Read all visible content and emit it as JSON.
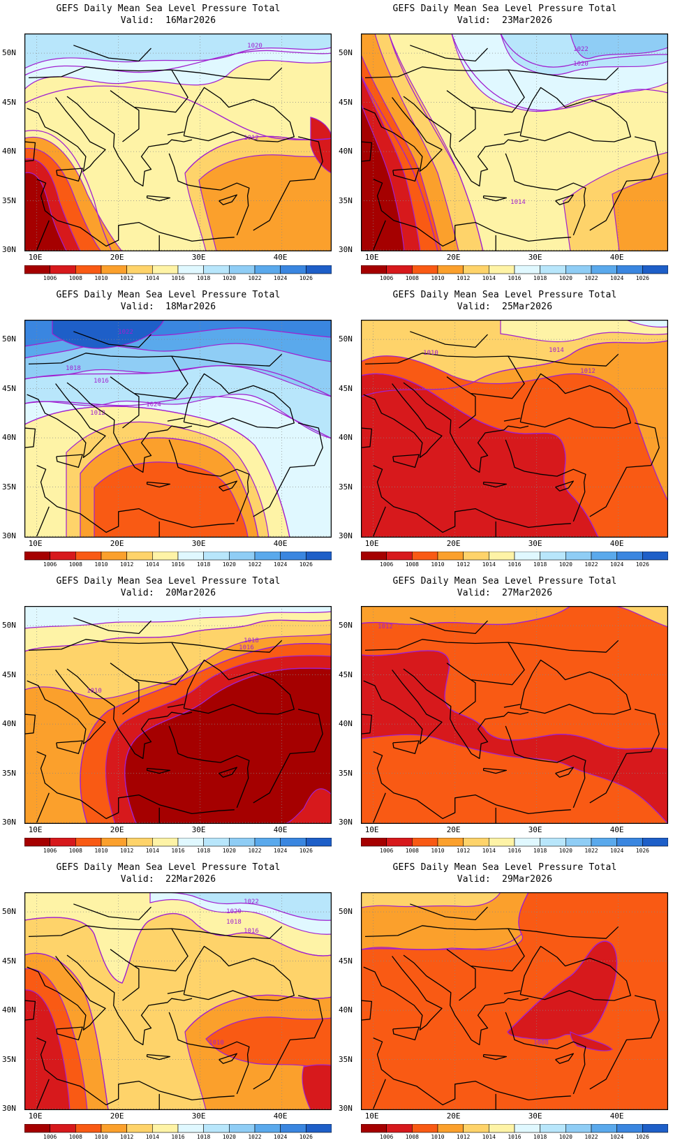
{
  "title": "GEFS Daily Mean Sea Level Pressure Total",
  "valid_prefix": "Valid:",
  "axis": {
    "lat_labels": [
      "50N",
      "45N",
      "40N",
      "35N",
      "30N"
    ],
    "lon_labels": [
      "10E",
      "20E",
      "30E",
      "40E"
    ]
  },
  "colorbar": {
    "labels": [
      "1006",
      "1008",
      "1010",
      "1012",
      "1014",
      "1016",
      "1018",
      "1020",
      "1022",
      "1024",
      "1026"
    ],
    "colors": [
      "#a50000",
      "#d7191c",
      "#f95a14",
      "#fba02c",
      "#fed36a",
      "#fef3a6",
      "#e0f8ff",
      "#b8e6fb",
      "#8fcdf5",
      "#5aa9ec",
      "#3a86e0",
      "#1e5fc8"
    ]
  },
  "contour_color": "#a020d0",
  "panels": [
    {
      "valid": "16Mar2026",
      "base_level": 5,
      "labels": [
        {
          "text": "1020"
        },
        {
          "text": "1012"
        }
      ]
    },
    {
      "valid": "23Mar2026",
      "base_level": 5,
      "labels": [
        {
          "text": "1022"
        },
        {
          "text": "1020"
        },
        {
          "text": "1014"
        }
      ]
    },
    {
      "valid": "18Mar2026",
      "base_level": 6,
      "labels": [
        {
          "text": "1022"
        },
        {
          "text": "1018"
        },
        {
          "text": "1016"
        },
        {
          "text": "1012"
        },
        {
          "text": "1024"
        }
      ]
    },
    {
      "valid": "25Mar2026",
      "base_level": 3,
      "labels": [
        {
          "text": "1010"
        },
        {
          "text": "1014"
        },
        {
          "text": "1012"
        }
      ]
    },
    {
      "valid": "20Mar2026",
      "base_level": 4,
      "labels": [
        {
          "text": "1010"
        },
        {
          "text": "1018"
        },
        {
          "text": "1016"
        }
      ]
    },
    {
      "valid": "27Mar2026",
      "base_level": 2,
      "labels": [
        {
          "text": "1012"
        }
      ]
    },
    {
      "valid": "22Mar2026",
      "base_level": 4,
      "labels": [
        {
          "text": "1022"
        },
        {
          "text": "1020"
        },
        {
          "text": "1018"
        },
        {
          "text": "1016"
        },
        {
          "text": "1010"
        }
      ]
    },
    {
      "valid": "29Mar2026",
      "base_level": 2,
      "labels": [
        {
          "text": "1008"
        }
      ]
    }
  ]
}
